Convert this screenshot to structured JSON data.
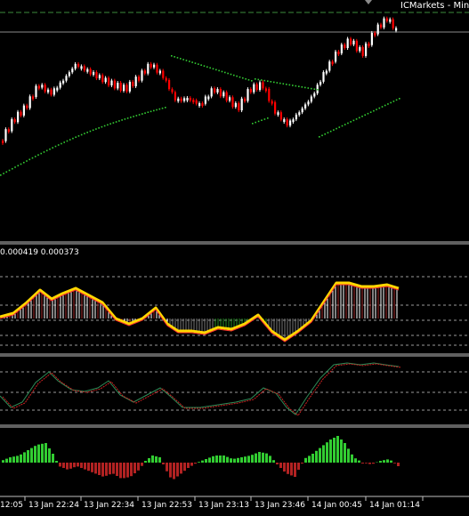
{
  "header": {
    "broker_label": "ICMarkets - Mini t"
  },
  "indicator1": {
    "values_label": "0.000419 0.000373"
  },
  "time_axis": {
    "labels": [
      "12:05",
      "13 Jan 22:24",
      "13 Jan 22:34",
      "13 Jan 22:53",
      "13 Jan 23:13",
      "13 Jan 23:46",
      "14 Jan 00:45",
      "14 Jan 01:14"
    ]
  },
  "colors": {
    "bull_candle": "#ffffff",
    "bear_candle": "#ff0000",
    "dots": "#33cc33",
    "signal_line": "#ffd700",
    "hist_up": "#ffffff",
    "hist_down": "#a52a2a",
    "osc_green": "#228b22",
    "bar_up": "#32cd32",
    "bar_down": "#b22222"
  }
}
